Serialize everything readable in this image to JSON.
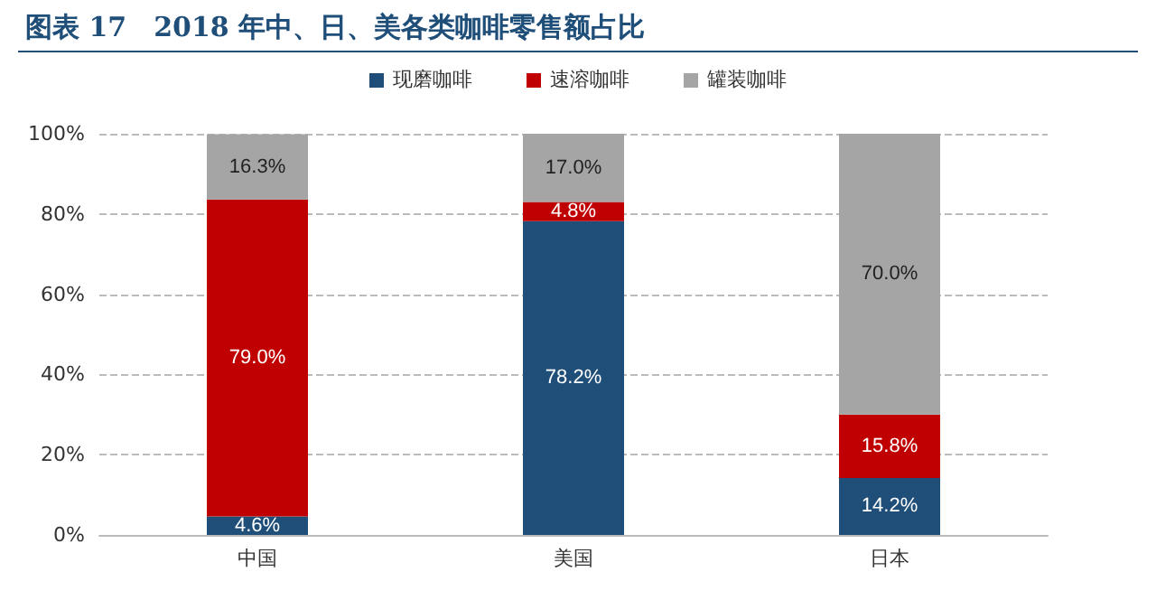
{
  "chart_data": {
    "type": "bar",
    "title": "图表 17　2018 年中、日、美各类咖啡零售额占比",
    "categories": [
      "中国",
      "美国",
      "日本"
    ],
    "stacked": true,
    "series": [
      {
        "name": "现磨咖啡",
        "color": "#1f4e79",
        "values": [
          4.6,
          78.2,
          14.2
        ],
        "value_labels": [
          "4.6%",
          "78.2%",
          "14.2%"
        ]
      },
      {
        "name": "速溶咖啡",
        "color": "#c00000",
        "values": [
          79.0,
          4.8,
          15.8
        ],
        "value_labels": [
          "79.0%",
          "4.8%",
          "15.8%"
        ]
      },
      {
        "name": "罐装咖啡",
        "color": "#a5a5a5",
        "values": [
          16.3,
          17.0,
          70.0
        ],
        "value_labels": [
          "16.3%",
          "17.0%",
          "70.0%"
        ]
      }
    ],
    "ylim": [
      0,
      100
    ],
    "yticks": [
      {
        "value": 0,
        "label": "0%"
      },
      {
        "value": 20,
        "label": "20%"
      },
      {
        "value": 40,
        "label": "40%"
      },
      {
        "value": 60,
        "label": "60%"
      },
      {
        "value": 80,
        "label": "80%"
      },
      {
        "value": 100,
        "label": "100%"
      }
    ],
    "grid": "y",
    "legend": "top"
  }
}
